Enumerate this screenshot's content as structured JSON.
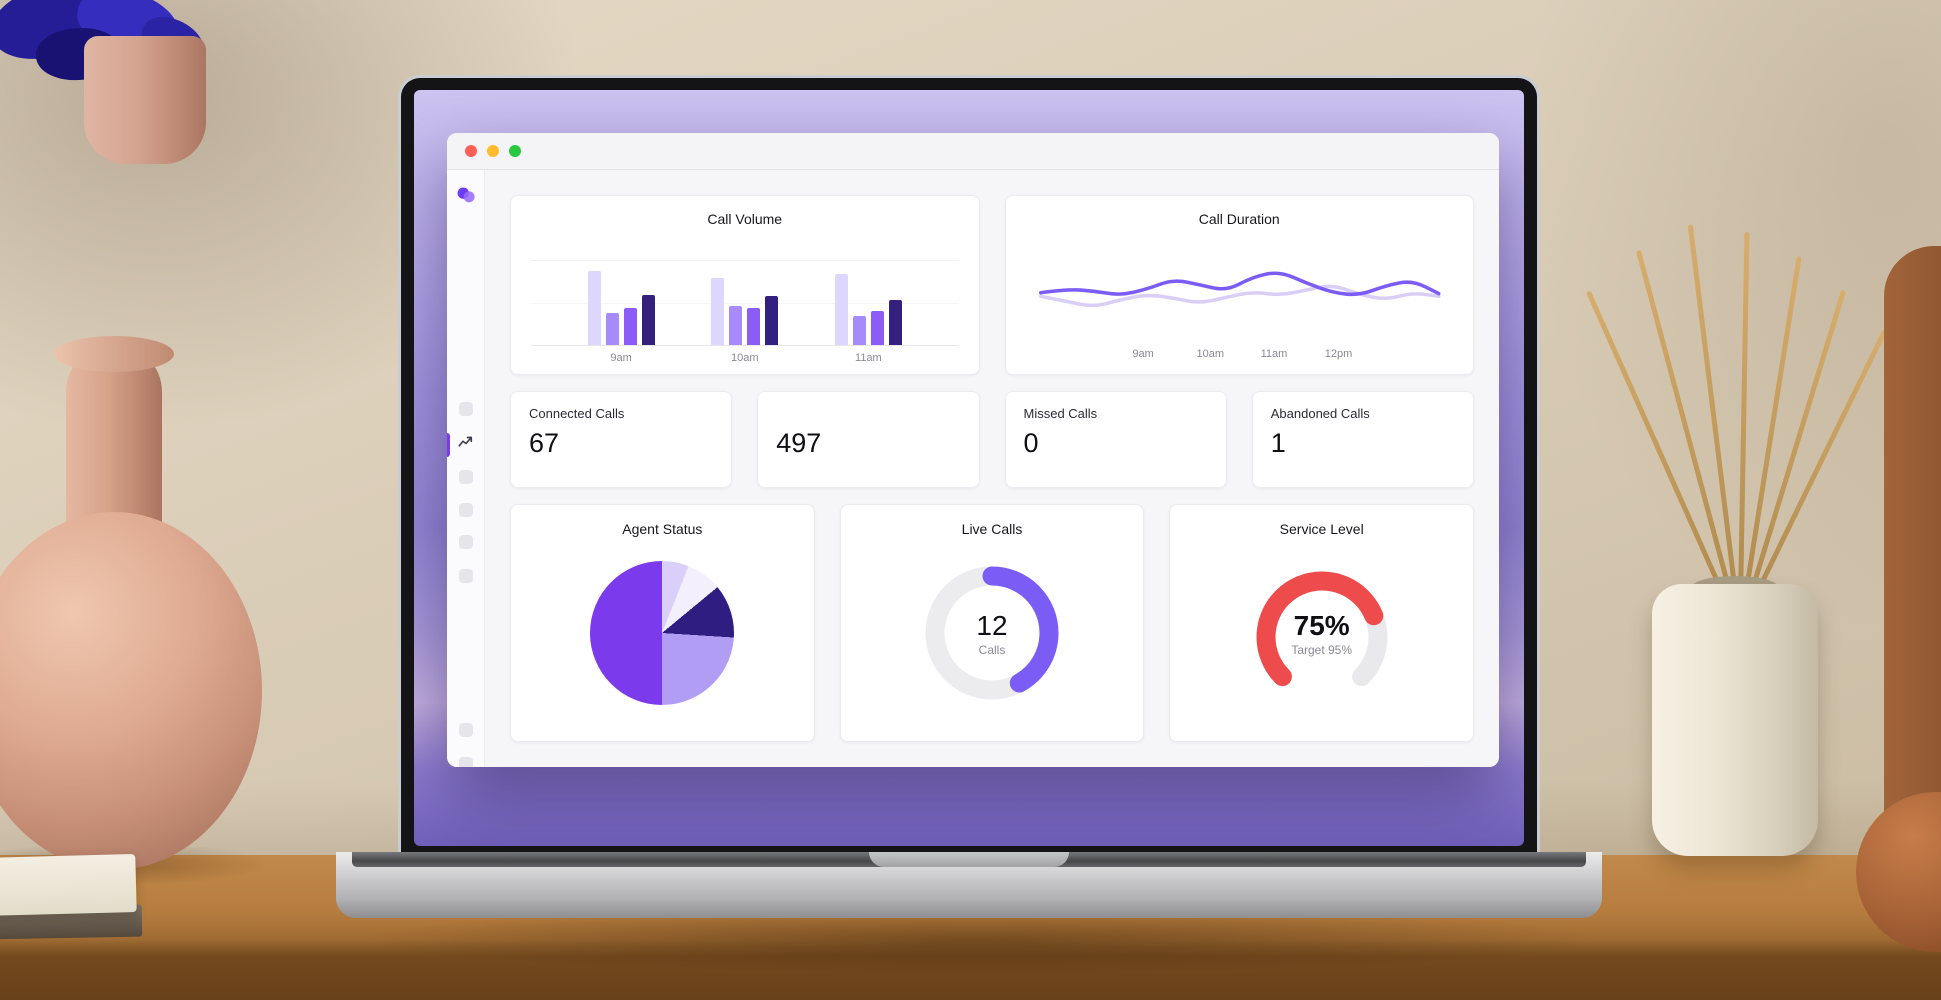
{
  "window": {
    "traffic_lights": {
      "close": "#ff5f57",
      "minimize": "#febc2e",
      "zoom": "#28c840"
    },
    "accent_color": "#7c3aed"
  },
  "sidebar": {
    "logo_colors": [
      "#6d3df5",
      "#9a6bfa"
    ],
    "active_item": "analytics"
  },
  "stats": [
    {
      "label": "Connected Calls",
      "value": "67"
    },
    {
      "label": "",
      "value": "497"
    },
    {
      "label": "Missed Calls",
      "value": "0"
    },
    {
      "label": "Abandoned Calls",
      "value": "1"
    }
  ],
  "chart_data": [
    {
      "id": "call_volume",
      "type": "bar",
      "title": "Call Volume",
      "categories": [
        "9am",
        "10am",
        "11am"
      ],
      "series": [
        {
          "name": "lavender",
          "color": "#ddd6fe",
          "values": [
            88,
            80,
            84
          ]
        },
        {
          "name": "violet",
          "color": "#a78bfa",
          "values": [
            38,
            46,
            34
          ]
        },
        {
          "name": "purple",
          "color": "#8b5cf6",
          "values": [
            44,
            44,
            40
          ]
        },
        {
          "name": "indigo",
          "color": "#33207f",
          "values": [
            60,
            58,
            54
          ]
        }
      ],
      "ylim": [
        0,
        100
      ],
      "grid": true
    },
    {
      "id": "call_duration",
      "type": "line",
      "title": "Call Duration",
      "x_labels": [
        "9am",
        "10am",
        "11am",
        "12pm"
      ],
      "series": [
        {
          "name": "lavender-line",
          "color": "#d9cff6",
          "values": [
            46,
            40,
            34,
            42,
            48,
            44,
            38,
            45,
            51,
            47,
            53,
            59,
            48,
            42,
            50,
            46
          ]
        },
        {
          "name": "purple-line",
          "color": "#7b5cf5",
          "values": [
            50,
            54,
            52,
            47,
            54,
            65,
            59,
            52,
            68,
            74,
            61,
            50,
            47,
            58,
            64,
            49
          ]
        }
      ],
      "ylim": [
        0,
        100
      ],
      "grid": false
    },
    {
      "id": "agent_status",
      "type": "pie",
      "title": "Agent Status",
      "slices": [
        {
          "name": "pale-lavender",
          "color": "#d9cff8",
          "value": 6
        },
        {
          "name": "near-white",
          "color": "#f3effc",
          "value": 8
        },
        {
          "name": "dark-indigo",
          "color": "#2f1d82",
          "value": 12
        },
        {
          "name": "light-purple",
          "color": "#b29df5",
          "value": 24
        },
        {
          "name": "purple",
          "color": "#7c3aed",
          "value": 50
        }
      ]
    },
    {
      "id": "live_calls",
      "type": "donut",
      "title": "Live Calls",
      "value": "12",
      "unit_label": "Calls",
      "percent": 42,
      "color": "#7b5cf5",
      "track_color": "#ececee"
    },
    {
      "id": "service_level",
      "type": "gauge",
      "title": "Service Level",
      "value_label": "75%",
      "sub_label": "Target 95%",
      "percent": 75,
      "arc_degrees": 270,
      "color": "#ee4c4c",
      "track_color": "#e9e9eb"
    }
  ]
}
